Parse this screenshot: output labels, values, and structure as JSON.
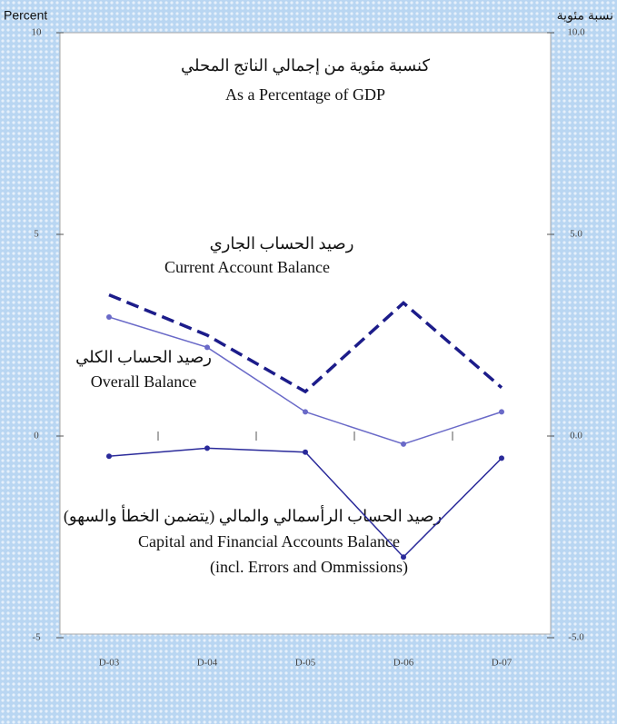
{
  "chart_data": {
    "type": "line",
    "title": "كنسبة مئوية من إجمالي الناتج المحلي",
    "subtitle": "As a Percentage of GDP",
    "y_label": "Percent",
    "y2_label": "نسبة مئوية",
    "categories": [
      "D-03",
      "D-04",
      "D-05",
      "D-06",
      "D-07"
    ],
    "ylim": [
      -5,
      10
    ],
    "yticks": [
      -5,
      0,
      5,
      10
    ],
    "y2lim": [
      -5,
      10
    ],
    "y2ticks": [
      {
        "value": -5,
        "label": "-5.0"
      },
      {
        "value": 0,
        "label": "0.0"
      },
      {
        "value": 5,
        "label": "5.0"
      },
      {
        "value": 10,
        "label": "10.0"
      }
    ],
    "series": [
      {
        "name": "Current Account Balance",
        "name_ar": "رصيد الحساب الجاري",
        "color": "#1c1c8a",
        "dashed": true,
        "values": [
          3.5,
          2.5,
          1.1,
          3.3,
          1.2
        ]
      },
      {
        "name": "Overall Balance",
        "name_ar": "رصيد الحساب الكلي",
        "color": "#6a6ac8",
        "dashed": false,
        "values": [
          2.95,
          2.2,
          0.6,
          -0.2,
          0.6
        ]
      },
      {
        "name": "Capital and Financial Accounts Balance",
        "name_ar": "رصيد الحساب الرأسمالي والمالي (يتضمن الخطأ والسهو)",
        "note": "(incl. Errors and Ommissions)",
        "color": "#2a2a9a",
        "dashed": false,
        "values": [
          -0.5,
          -0.3,
          -0.4,
          -3.0,
          -0.55
        ]
      }
    ]
  }
}
